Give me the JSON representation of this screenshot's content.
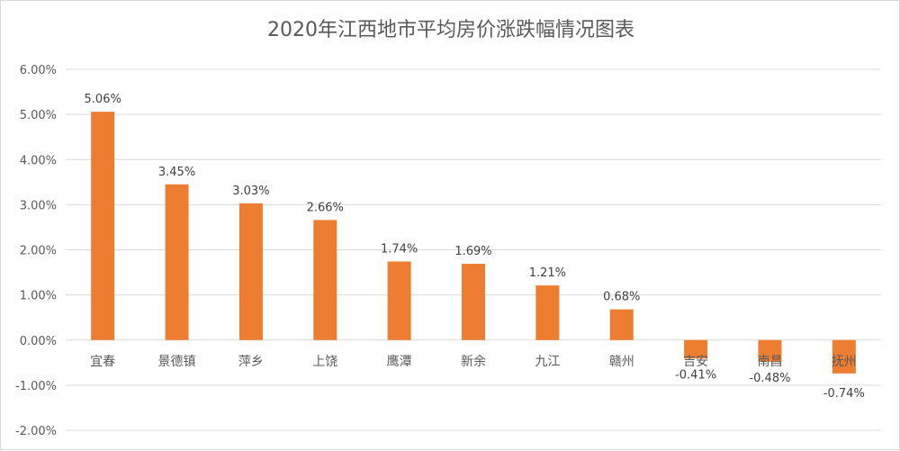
{
  "chart_data": {
    "type": "bar",
    "title": "2020年江西地市平均房价涨跌幅情况图表",
    "categories": [
      "宜春",
      "景德镇",
      "萍乡",
      "上饶",
      "鹰潭",
      "新余",
      "九江",
      "赣州",
      "吉安",
      "南昌",
      "抚州"
    ],
    "values": [
      5.06,
      3.45,
      3.03,
      2.66,
      1.74,
      1.69,
      1.21,
      0.68,
      -0.41,
      -0.48,
      -0.74
    ],
    "data_labels": [
      "5.06%",
      "3.45%",
      "3.03%",
      "2.66%",
      "1.74%",
      "1.69%",
      "1.21%",
      "0.68%",
      "-0.41%",
      "-0.48%",
      "-0.74%"
    ],
    "yticks": [
      "-2.00%",
      "-1.00%",
      "0.00%",
      "1.00%",
      "2.00%",
      "3.00%",
      "4.00%",
      "5.00%",
      "6.00%"
    ],
    "ylim": [
      -2,
      6
    ],
    "xlabel": "",
    "ylabel": "",
    "grid": true,
    "bar_color": "#ED7D31"
  }
}
